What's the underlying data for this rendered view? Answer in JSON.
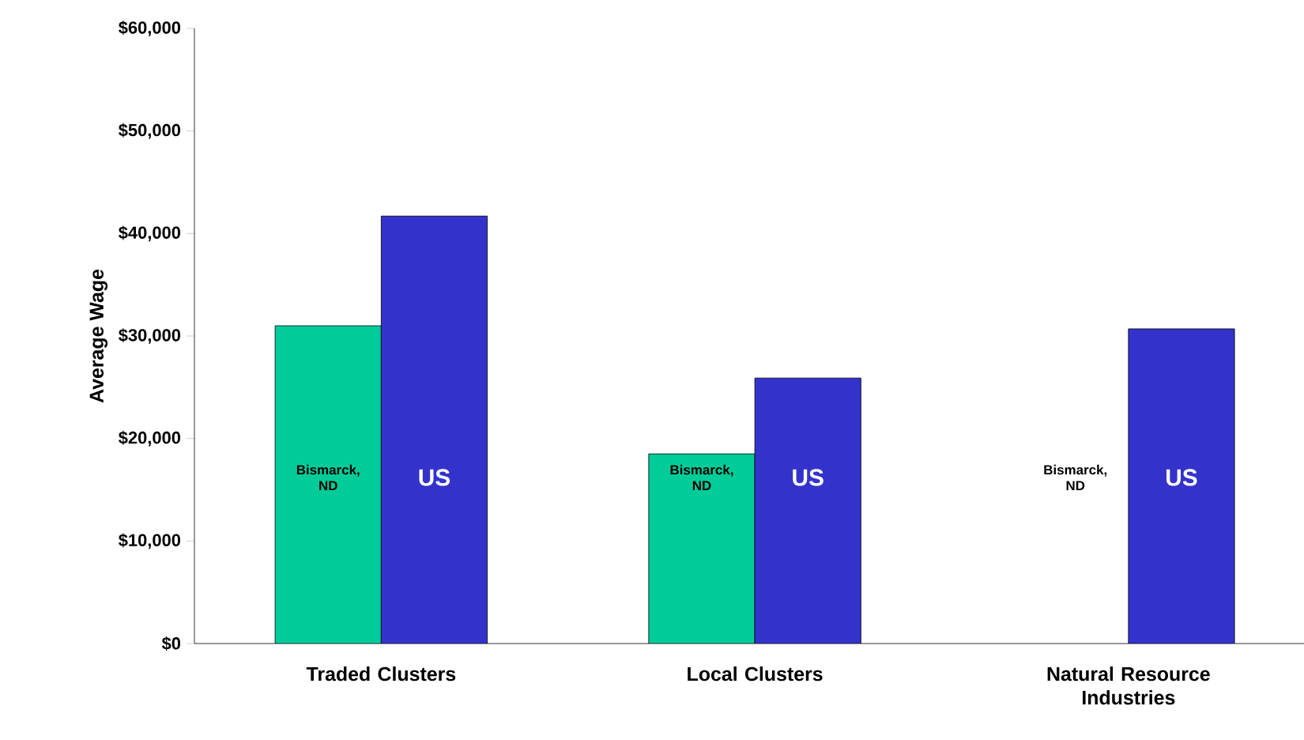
{
  "chart_data": {
    "type": "bar",
    "ylabel": "Average Wage",
    "categories": [
      "Traded Clusters",
      "Local Clusters",
      "Natural Resource Industries"
    ],
    "series": [
      {
        "name": "Bismarck, ND",
        "color": "#00cc99",
        "values": [
          31000,
          18500,
          null
        ]
      },
      {
        "name": "US",
        "color": "#3333cc",
        "values": [
          41700,
          25900,
          30700
        ]
      }
    ],
    "ylim": [
      0,
      60000
    ],
    "yticks": [
      {
        "value": 0,
        "label": "$0"
      },
      {
        "value": 10000,
        "label": "$10,000"
      },
      {
        "value": 20000,
        "label": "$20,000"
      },
      {
        "value": 30000,
        "label": "$30,000"
      },
      {
        "value": 40000,
        "label": "$40,000"
      },
      {
        "value": 50000,
        "label": "$50,000"
      },
      {
        "value": 60000,
        "label": "$60,000"
      }
    ],
    "grid": false,
    "legend": false
  }
}
